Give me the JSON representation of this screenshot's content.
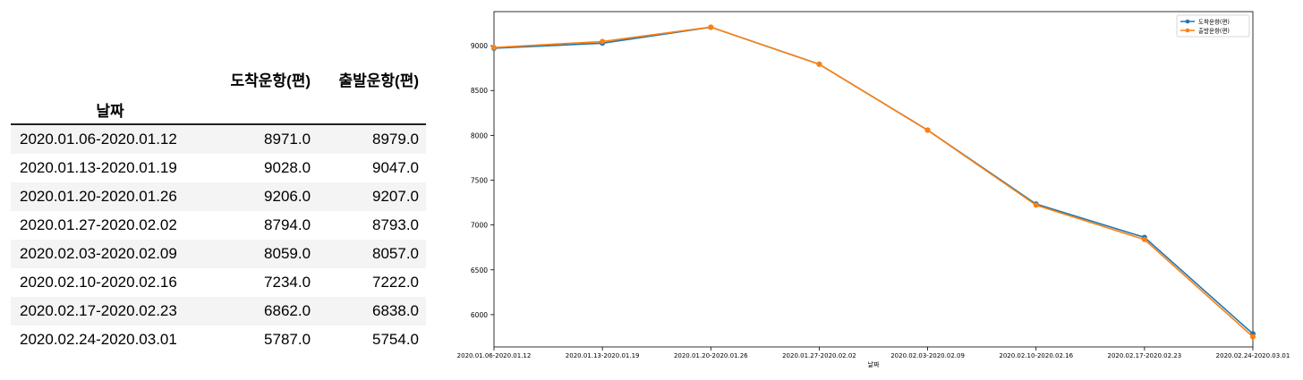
{
  "table": {
    "columns": [
      "도착운항(편)",
      "출발운항(편)"
    ],
    "index_name": "날짜",
    "rows": [
      {
        "date": "2020.01.06-2020.01.12",
        "arr": "8971.0",
        "dep": "8979.0"
      },
      {
        "date": "2020.01.13-2020.01.19",
        "arr": "9028.0",
        "dep": "9047.0"
      },
      {
        "date": "2020.01.20-2020.01.26",
        "arr": "9206.0",
        "dep": "9207.0"
      },
      {
        "date": "2020.01.27-2020.02.02",
        "arr": "8794.0",
        "dep": "8793.0"
      },
      {
        "date": "2020.02.03-2020.02.09",
        "arr": "8059.0",
        "dep": "8057.0"
      },
      {
        "date": "2020.02.10-2020.02.16",
        "arr": "7234.0",
        "dep": "7222.0"
      },
      {
        "date": "2020.02.17-2020.02.23",
        "arr": "6862.0",
        "dep": "6838.0"
      },
      {
        "date": "2020.02.24-2020.03.01",
        "arr": "5787.0",
        "dep": "5754.0"
      }
    ]
  },
  "chart_data": {
    "type": "line",
    "title": "",
    "xlabel": "날짜",
    "ylabel": "",
    "categories": [
      "2020.01.06-2020.01.12",
      "2020.01.13-2020.01.19",
      "2020.01.20-2020.01.26",
      "2020.01.27-2020.02.02",
      "2020.02.03-2020.02.09",
      "2020.02.10-2020.02.16",
      "2020.02.17-2020.02.23",
      "2020.02.24-2020.03.01"
    ],
    "series": [
      {
        "name": "도착운항(편)",
        "color": "#1f77b4",
        "values": [
          8971,
          9028,
          9206,
          8794,
          8059,
          7234,
          6862,
          5787
        ]
      },
      {
        "name": "출발운항(편)",
        "color": "#ff7f0e",
        "values": [
          8979,
          9047,
          9207,
          8793,
          8057,
          7222,
          6838,
          5754
        ]
      }
    ],
    "yticks": [
      6000,
      6500,
      7000,
      7500,
      8000,
      8500,
      9000
    ],
    "ylim": [
      5640,
      9380
    ],
    "grid": false,
    "legend": "top-right",
    "marker": "circle"
  }
}
